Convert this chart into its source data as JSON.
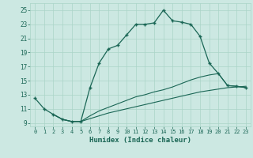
{
  "xlabel": "Humidex (Indice chaleur)",
  "bg_color": "#cce8e2",
  "grid_color": "#aad4c8",
  "line_color": "#1a6655",
  "xlim": [
    -0.5,
    23.5
  ],
  "ylim": [
    8.5,
    26.0
  ],
  "xticks": [
    0,
    1,
    2,
    3,
    4,
    5,
    6,
    7,
    8,
    9,
    10,
    11,
    12,
    13,
    14,
    15,
    16,
    17,
    18,
    19,
    20,
    21,
    22,
    23
  ],
  "yticks": [
    9,
    11,
    13,
    15,
    17,
    19,
    21,
    23,
    25
  ],
  "main_x": [
    0,
    1,
    2,
    3,
    4,
    5,
    6,
    7,
    8,
    9,
    10,
    11,
    12,
    13,
    14,
    15,
    16,
    17,
    18,
    19,
    20,
    21,
    22,
    23
  ],
  "main_y": [
    12.5,
    11.0,
    10.2,
    9.5,
    9.2,
    9.2,
    14.0,
    17.5,
    19.5,
    20.0,
    21.5,
    23.0,
    23.0,
    23.2,
    25.0,
    23.5,
    23.3,
    23.0,
    21.3,
    17.5,
    16.0,
    14.3,
    14.2,
    14.0
  ],
  "line2_x": [
    2,
    3,
    4,
    5,
    6,
    7,
    8,
    9,
    10,
    11,
    12,
    13,
    14,
    15,
    16,
    17,
    18,
    19,
    20,
    21,
    22,
    23
  ],
  "line2_y": [
    10.2,
    9.5,
    9.2,
    9.2,
    10.0,
    10.7,
    11.2,
    11.7,
    12.2,
    12.7,
    13.0,
    13.4,
    13.7,
    14.1,
    14.6,
    15.1,
    15.5,
    15.8,
    16.0,
    14.3,
    14.2,
    14.0
  ],
  "line3_x": [
    2,
    3,
    4,
    5,
    6,
    7,
    8,
    9,
    10,
    11,
    12,
    13,
    14,
    15,
    16,
    17,
    18,
    19,
    20,
    21,
    22,
    23
  ],
  "line3_y": [
    10.2,
    9.5,
    9.2,
    9.2,
    9.6,
    10.0,
    10.4,
    10.7,
    11.0,
    11.3,
    11.6,
    11.9,
    12.2,
    12.5,
    12.8,
    13.1,
    13.4,
    13.6,
    13.8,
    14.0,
    14.1,
    14.2
  ]
}
